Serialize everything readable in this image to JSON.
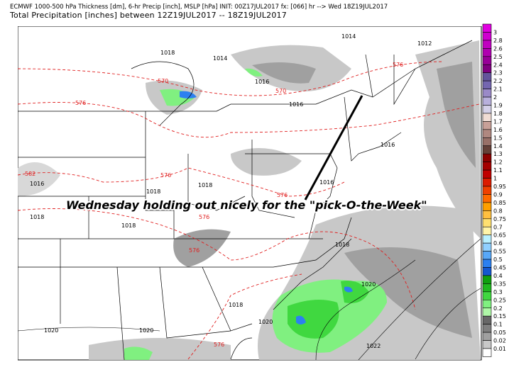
{
  "header": {
    "line1": "ECMWF 1000-500 hPa Thickness [dm], 6-hr Precip [inch], MSLP [hPa] INIT: 00Z17JUL2017 fx: [066] hr --> Wed 18Z19JUL2017",
    "line2": "Total Precipitation [inches] between 12Z19JUL2017 -- 18Z19JUL2017"
  },
  "annotation": "Wednesday holding out nicely for the \"pick-O-the-Week\"",
  "pressure_labels": [
    "1014",
    "1012",
    "1018",
    "1014",
    "1016",
    "1016",
    "1016",
    "1016",
    "1016",
    "1018",
    "1018",
    "1018",
    "1018",
    "1018",
    "1018",
    "1020",
    "1020",
    "1020",
    "1020",
    "1022"
  ],
  "thickness_labels": [
    "570",
    "570",
    "576",
    "576",
    "576",
    "576",
    "582",
    "576",
    "576",
    "576"
  ],
  "colorbar": {
    "labels": [
      "3",
      "2.8",
      "2.6",
      "2.5",
      "2.4",
      "2.3",
      "2.2",
      "2.1",
      "2",
      "1.9",
      "1.8",
      "1.7",
      "1.6",
      "1.5",
      "1.4",
      "1.3",
      "1.2",
      "1.1",
      "1",
      "0.95",
      "0.9",
      "0.85",
      "0.8",
      "0.75",
      "0.7",
      "0.65",
      "0.6",
      "0.55",
      "0.5",
      "0.45",
      "0.4",
      "0.35",
      "0.3",
      "0.25",
      "0.2",
      "0.15",
      "0.1",
      "0.05",
      "0.02",
      "0.01"
    ],
    "colors": [
      "#e000e0",
      "#d000d0",
      "#c000c0",
      "#b000b0",
      "#980098",
      "#800080",
      "#64549c",
      "#7466b0",
      "#9a8ac8",
      "#b8b0dc",
      "#d4d0e8",
      "#f0dcd4",
      "#c8a098",
      "#b08880",
      "#987068",
      "#644038",
      "#8c0000",
      "#a40000",
      "#c00000",
      "#dc1c00",
      "#f04000",
      "#ff6a00",
      "#ffa000",
      "#ffc040",
      "#ffe070",
      "#fff4a8",
      "#b8f0ff",
      "#90d0ff",
      "#58a8f8",
      "#2c80f0",
      "#1458d0",
      "#10a010",
      "#20b820",
      "#40d840",
      "#80f080",
      "#b0f8a8",
      "#686868",
      "#808080",
      "#a0a0a0",
      "#c8c8c8",
      "#ffffff"
    ]
  }
}
